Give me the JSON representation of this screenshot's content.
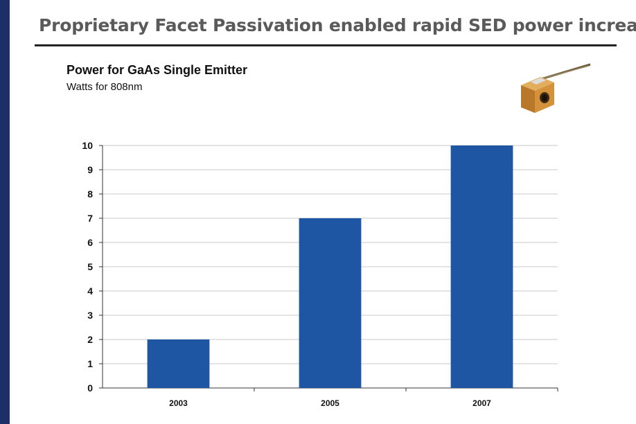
{
  "slide": {
    "title": "Proprietary Facet Passivation enabled rapid SED power increase",
    "accent_color": "#1d2f66"
  },
  "product_image": {
    "icon": "laser-diode-module-icon",
    "color": "#c8892e"
  },
  "chart_data": {
    "type": "bar",
    "title": "Power for GaAs Single Emitter",
    "subtitle": "Watts for 808nm",
    "categories": [
      "2003",
      "2005",
      "2007"
    ],
    "values": [
      2,
      7,
      10
    ],
    "ylim": [
      0,
      10
    ],
    "yticks": [
      0,
      1,
      2,
      3,
      4,
      5,
      6,
      7,
      8,
      9,
      10
    ],
    "grid": true,
    "legend": "none",
    "bar_color": "#1f56a4",
    "xlabel": "",
    "ylabel": ""
  }
}
